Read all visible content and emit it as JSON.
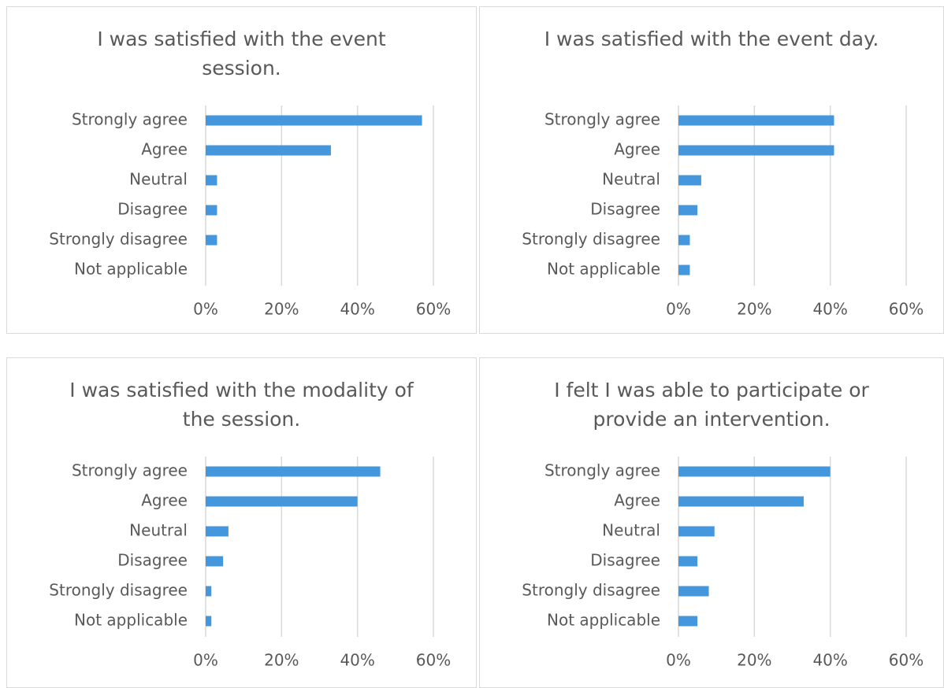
{
  "chart_data": [
    {
      "type": "bar",
      "horizontal": true,
      "title": "I was satisfied with the event session.",
      "categories": [
        "Strongly agree",
        "Agree",
        "Neutral",
        "Disagree",
        "Strongly disagree",
        "Not applicable"
      ],
      "values": [
        57,
        33,
        3,
        3,
        3,
        0
      ],
      "color": "#4597dd",
      "xlim": [
        0,
        60
      ],
      "xticks": [
        {
          "value": 0,
          "label": "0%"
        },
        {
          "value": 20,
          "label": "20%"
        },
        {
          "value": 40,
          "label": "40%"
        },
        {
          "value": 60,
          "label": "60%"
        }
      ],
      "grid": true
    },
    {
      "type": "bar",
      "horizontal": true,
      "title": "I was satisfied with the event day.",
      "categories": [
        "Strongly agree",
        "Agree",
        "Neutral",
        "Disagree",
        "Strongly disagree",
        "Not applicable"
      ],
      "values": [
        41,
        41,
        6,
        5,
        3,
        3
      ],
      "color": "#4597dd",
      "xlim": [
        0,
        60
      ],
      "xticks": [
        {
          "value": 0,
          "label": "0%"
        },
        {
          "value": 20,
          "label": "20%"
        },
        {
          "value": 40,
          "label": "40%"
        },
        {
          "value": 60,
          "label": "60%"
        }
      ],
      "grid": true
    },
    {
      "type": "bar",
      "horizontal": true,
      "title": "I was satisfied with the modality of the session.",
      "categories": [
        "Strongly agree",
        "Agree",
        "Neutral",
        "Disagree",
        "Strongly disagree",
        "Not applicable"
      ],
      "values": [
        46,
        40,
        6,
        4.6,
        1.5,
        1.5
      ],
      "color": "#4597dd",
      "xlim": [
        0,
        60
      ],
      "xticks": [
        {
          "value": 0,
          "label": "0%"
        },
        {
          "value": 20,
          "label": "20%"
        },
        {
          "value": 40,
          "label": "40%"
        },
        {
          "value": 60,
          "label": "60%"
        }
      ],
      "grid": true
    },
    {
      "type": "bar",
      "horizontal": true,
      "title": "I felt I was able to participate or provide an intervention.",
      "categories": [
        "Strongly agree",
        "Agree",
        "Neutral",
        "Disagree",
        "Strongly disagree",
        "Not applicable"
      ],
      "values": [
        40,
        33,
        9.5,
        5,
        8,
        5
      ],
      "color": "#4597dd",
      "xlim": [
        0,
        60
      ],
      "xticks": [
        {
          "value": 0,
          "label": "0%"
        },
        {
          "value": 20,
          "label": "20%"
        },
        {
          "value": 40,
          "label": "40%"
        },
        {
          "value": 60,
          "label": "60%"
        }
      ],
      "grid": true
    }
  ]
}
